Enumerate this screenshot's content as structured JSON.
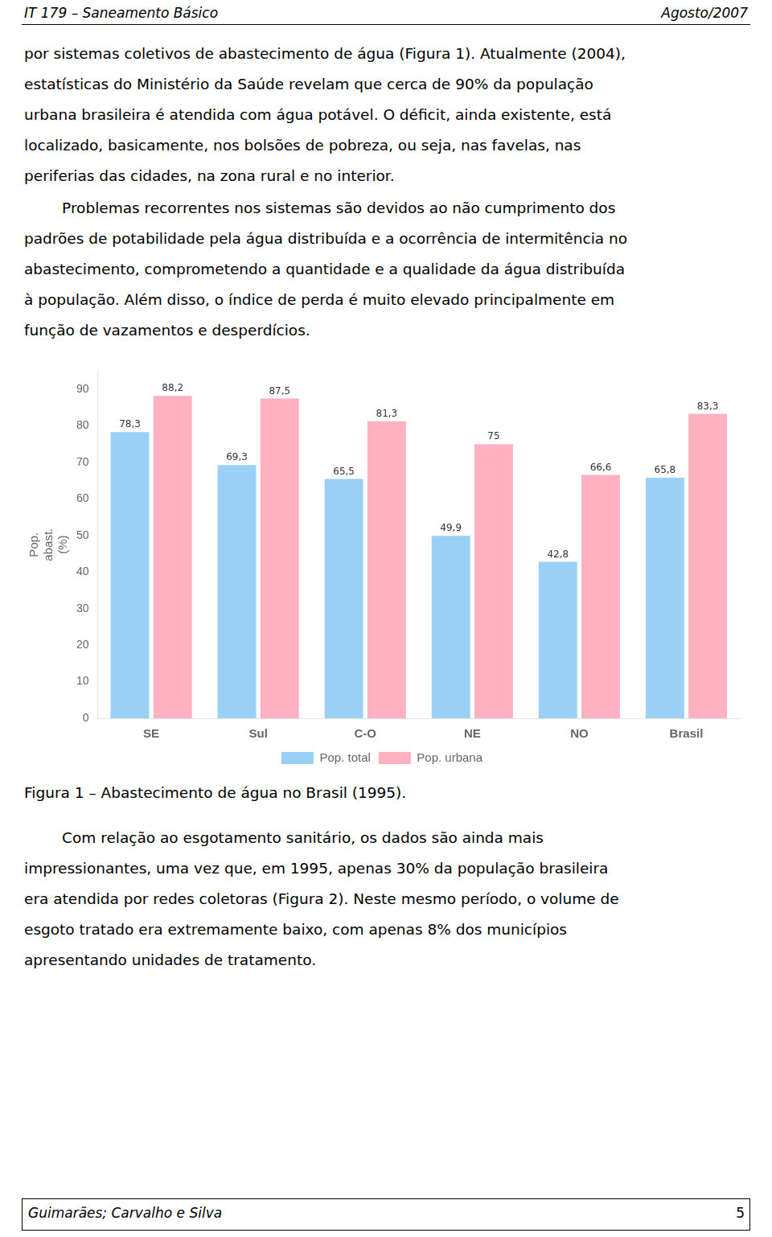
{
  "chart_data": {
    "type": "bar",
    "categories": [
      "SE",
      "Sul",
      "C-O",
      "NE",
      "NO",
      "Brasil"
    ],
    "series": [
      {
        "name": "Pop. total",
        "values": [
          78.3,
          69.3,
          65.5,
          49.9,
          42.8,
          65.8
        ],
        "value_labels": [
          "78,3",
          "69,3",
          "65,5",
          "49,9",
          "42,8",
          "65,8"
        ]
      },
      {
        "name": "Pop. urbana",
        "values": [
          88.2,
          87.5,
          81.3,
          75.0,
          66.6,
          83.3
        ],
        "value_labels": [
          "88,2",
          "87,5",
          "81,3",
          "75",
          "66,6",
          "83,3"
        ]
      }
    ],
    "y_label": "Pop.\nabast.\n(%)",
    "ylim": [
      0,
      95
    ],
    "yticks": [
      0,
      10,
      20,
      30,
      40,
      50,
      60,
      70,
      80,
      90
    ],
    "grid": false,
    "legend": "bottom",
    "data_labels": true
  },
  "page_texts": {
    "header_left": "IT 179 – Saneamento Básico",
    "header_right": "Agosto/2007",
    "footer_left": "Guimarães; Carvalho e Silva",
    "footer_right": "5",
    "para1_lines": [
      "por sistemas coletivos de abastecimento de água (Figura 1). Atualmente (2004),",
      "estatísticas do Ministério da Saúde revelam que cerca de 90% da população",
      "urbana brasileira é atendida com água potável. O déficit, ainda existente, está",
      "localizado, basicamente, nos bolsões de pobreza, ou seja, nas favelas, nas",
      "periferias das cidades, na zona rural e no interior."
    ],
    "para2_lines": [
      "        Problemas recorrentes nos sistemas são devidos ao não cumprimento dos",
      "padrões de potabilidade pela água distribuída e a ocorrência de intermitência no",
      "abastecimento, comprometendo a quantidade e a qualidade da água distribuída",
      "à população. Além disso, o índice de perda é muito elevado principalmente em",
      "função de vazamentos e desperdícios."
    ],
    "figure_caption": "Figura 1 – Abastecimento de água no Brasil (1995).",
    "para3_lines": [
      "        Com relação ao esgotamento sanitário, os dados são ainda mais",
      "impressionantes, uma vez que, em 1995, apenas 30% da população brasileira",
      "era atendida por redes coletoras (Figura 2). Neste mesmo período, o volume de",
      "esgoto tratado era extremamente baixo, com apenas 8% dos municípios",
      "apresentando unidades de tratamento."
    ]
  }
}
